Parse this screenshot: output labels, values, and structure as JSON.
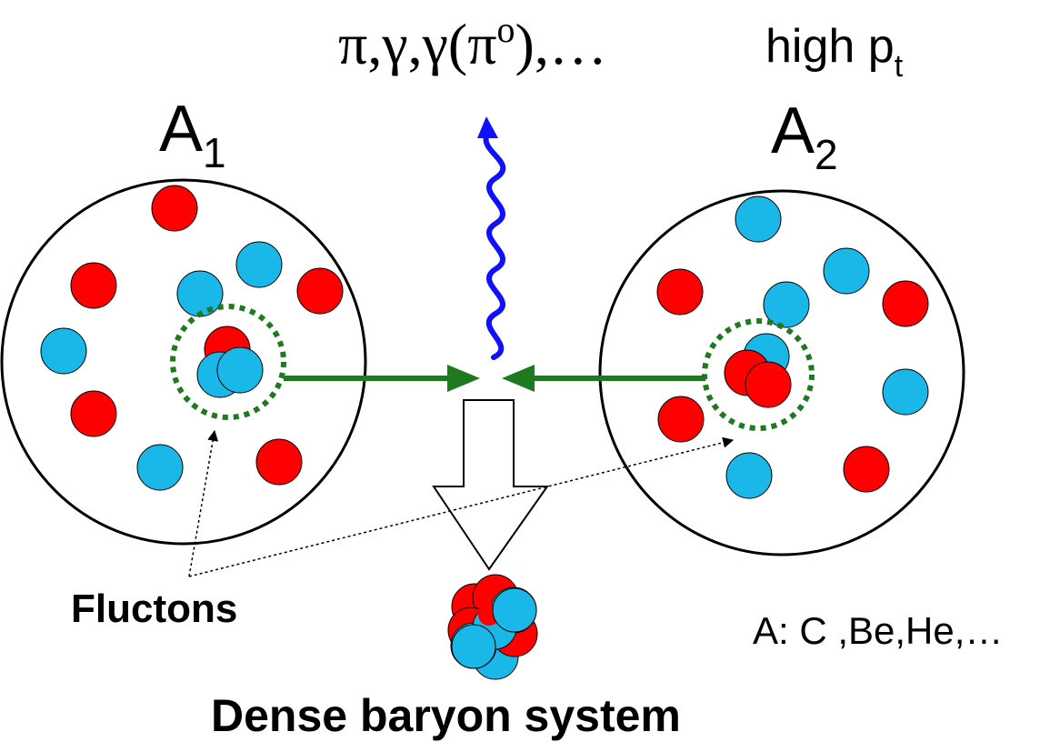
{
  "title": {
    "particles": "π,γ,γ(π",
    "superscript_o": "o",
    "particles_tail": "),…",
    "high": "high p",
    "subscript_t": "t"
  },
  "nucleus_left": {
    "label": "A",
    "subscript": "1"
  },
  "nucleus_right": {
    "label": "A",
    "subscript": "2"
  },
  "labels": {
    "fluctons": "Fluctons",
    "dense_system": "Dense baryon system",
    "nuclei_list": "A: C ,Be,He,…"
  },
  "colors": {
    "proton": "#ff0000",
    "neutron": "#1ab8e8",
    "arrow": "#1f7a1f",
    "photon": "#1010ff",
    "outline": "#000000"
  },
  "icons": {
    "photon": "wavy-line-arrow",
    "collision": "horizontal-arrow",
    "result": "hollow-down-arrow"
  }
}
